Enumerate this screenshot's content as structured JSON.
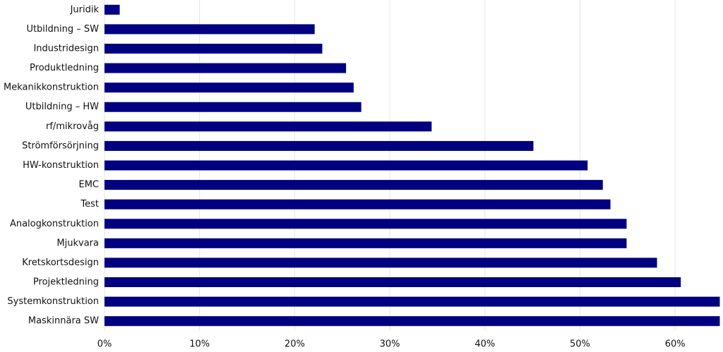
{
  "chart_data": {
    "type": "bar",
    "orientation": "horizontal",
    "categories": [
      "Juridik",
      "Utbildning – SW",
      "Industridesign",
      "Produktledning",
      "Mekanikkonstruktion",
      "Utbildning – HW",
      "rf/mikrovåg",
      "Strömförsörjning",
      "HW-konstruktion",
      "EMC",
      "Test",
      "Analogkonstruktion",
      "Mjukvara",
      "Kretskortsdesign",
      "Projektledning",
      "Systemkonstruktion",
      "Maskinnära SW"
    ],
    "values": [
      1.6,
      22.1,
      22.9,
      25.4,
      26.2,
      27.0,
      34.4,
      45.1,
      50.8,
      52.4,
      53.2,
      54.9,
      54.9,
      58.1,
      60.6,
      64.7,
      64.7
    ],
    "color": "#000080",
    "xlim": [
      0,
      65
    ],
    "xticks": [
      {
        "value": 0,
        "label": "0%"
      },
      {
        "value": 10,
        "label": "10%"
      },
      {
        "value": 20,
        "label": "20%"
      },
      {
        "value": 30,
        "label": "30%"
      },
      {
        "value": 40,
        "label": "40%"
      },
      {
        "value": 50,
        "label": "50%"
      },
      {
        "value": 60,
        "label": "60%"
      }
    ],
    "grid": true
  }
}
